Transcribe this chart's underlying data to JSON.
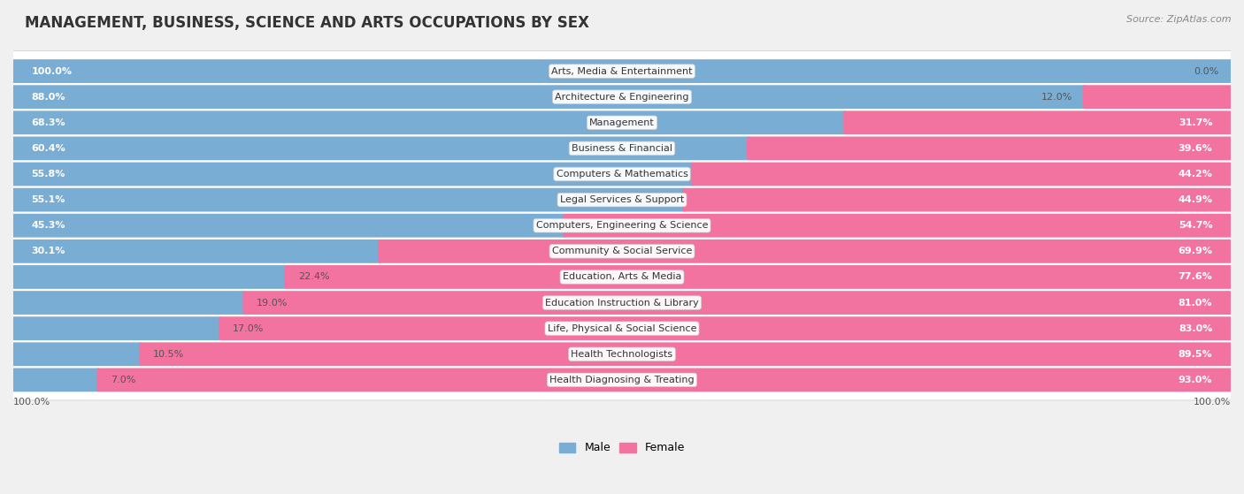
{
  "title": "MANAGEMENT, BUSINESS, SCIENCE AND ARTS OCCUPATIONS BY SEX",
  "source": "Source: ZipAtlas.com",
  "categories": [
    "Arts, Media & Entertainment",
    "Architecture & Engineering",
    "Management",
    "Business & Financial",
    "Computers & Mathematics",
    "Legal Services & Support",
    "Computers, Engineering & Science",
    "Community & Social Service",
    "Education, Arts & Media",
    "Education Instruction & Library",
    "Life, Physical & Social Science",
    "Health Technologists",
    "Health Diagnosing & Treating"
  ],
  "male_pct": [
    100.0,
    88.0,
    68.3,
    60.4,
    55.8,
    55.1,
    45.3,
    30.1,
    22.4,
    19.0,
    17.0,
    10.5,
    7.0
  ],
  "female_pct": [
    0.0,
    12.0,
    31.7,
    39.6,
    44.2,
    44.9,
    54.7,
    69.9,
    77.6,
    81.0,
    83.0,
    89.5,
    93.0
  ],
  "male_color": "#7aadd4",
  "female_color": "#f272a0",
  "bg_color": "#f0f0f0",
  "row_bg": "#ffffff",
  "row_bg_alt": "#e8e8ee",
  "title_fontsize": 12,
  "label_fontsize": 8,
  "pct_fontsize": 8,
  "legend_fontsize": 9,
  "source_fontsize": 8
}
